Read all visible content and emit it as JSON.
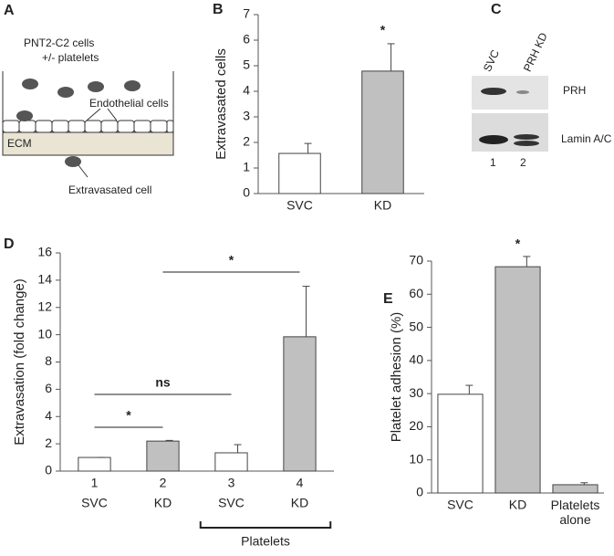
{
  "panel_labels": [
    "A",
    "B",
    "C",
    "D",
    "E"
  ],
  "diagram": {
    "cells_label": "PNT2-C2 cells",
    "platelets_label": "+/- platelets",
    "endothelial_label": "Endothelial cells",
    "ecm_label": "ECM",
    "extravasated_label": "Extravasated cell"
  },
  "blot": {
    "lanes": [
      "SVC",
      "PRH KD"
    ],
    "bands": [
      "PRH",
      "Lamin A/C"
    ],
    "lane_numbers": [
      "1",
      "2"
    ]
  },
  "chart_data": [
    {
      "type": "bar",
      "ylabel": "Extravasated cells",
      "categories": [
        "SVC",
        "KD"
      ],
      "values": [
        1.57,
        4.79
      ],
      "errors": [
        0.39,
        1.07
      ],
      "colors": [
        "#ffffff",
        "#c0c0c0"
      ],
      "ylim": [
        0,
        7
      ],
      "yticks": [
        0,
        1,
        2,
        3,
        4,
        5,
        6,
        7
      ],
      "annotations": [
        {
          "text": "*"
        }
      ]
    },
    {
      "type": "bar",
      "ylabel": "Extravasation (fold change)",
      "categories": [
        "1",
        "2",
        "3",
        "4"
      ],
      "category_labels": [
        "SVC",
        "KD",
        "SVC",
        "KD"
      ],
      "group_label": "Platelets",
      "values": [
        1,
        2.2,
        1.34,
        9.85
      ],
      "errors": [
        0,
        0.05,
        0.6,
        3.7
      ],
      "colors": [
        "#ffffff",
        "#c0c0c0",
        "#ffffff",
        "#c0c0c0"
      ],
      "ylim": [
        0,
        16
      ],
      "yticks": [
        0,
        2,
        4,
        6,
        8,
        10,
        12,
        14,
        16
      ],
      "annotations": [
        {
          "text": "*"
        },
        {
          "text": "ns"
        },
        {
          "text": "*"
        }
      ]
    },
    {
      "type": "bar",
      "ylabel": "Platelet adhesion (%)",
      "categories": [
        "SVC",
        "KD",
        "Platelets alone"
      ],
      "values": [
        29.8,
        68.3,
        2.5
      ],
      "errors": [
        2.7,
        3.1,
        0.6
      ],
      "colors": [
        "#ffffff",
        "#c0c0c0",
        "#c0c0c0"
      ],
      "ylim": [
        0,
        70
      ],
      "yticks": [
        0,
        10,
        20,
        30,
        40,
        50,
        60,
        70
      ],
      "annotations": [
        {
          "text": "*"
        }
      ]
    }
  ]
}
